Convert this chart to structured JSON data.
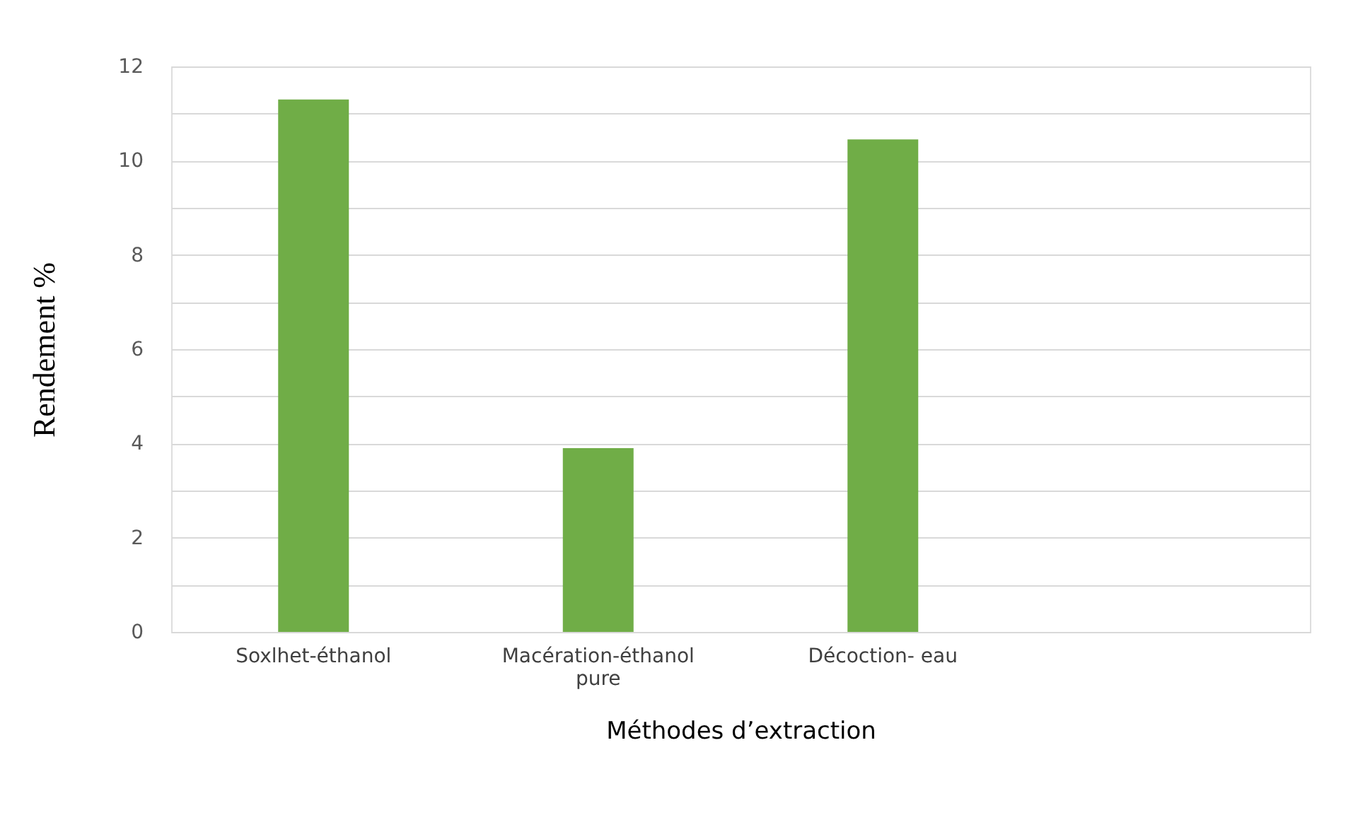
{
  "chart_data": {
    "type": "bar",
    "xlabel": "Méthodes d’extraction",
    "ylabel": "Rendement %",
    "categories": [
      "Soxlhet-éthanol",
      "Macération-éthanol pure",
      "Décoction- eau",
      null
    ],
    "values": [
      11.3,
      3.9,
      10.45,
      null
    ],
    "color": "#70ad47",
    "ylim": [
      0,
      12
    ],
    "yticks": [
      0,
      {
        "value": 1,
        "label": null
      },
      2,
      {
        "value": 3,
        "label": null
      },
      4,
      {
        "value": 5,
        "label": null
      },
      6,
      {
        "value": 7,
        "label": null
      },
      8,
      {
        "value": 9,
        "label": null
      },
      10,
      {
        "value": 11,
        "label": null
      },
      12
    ],
    "grid": "y"
  }
}
